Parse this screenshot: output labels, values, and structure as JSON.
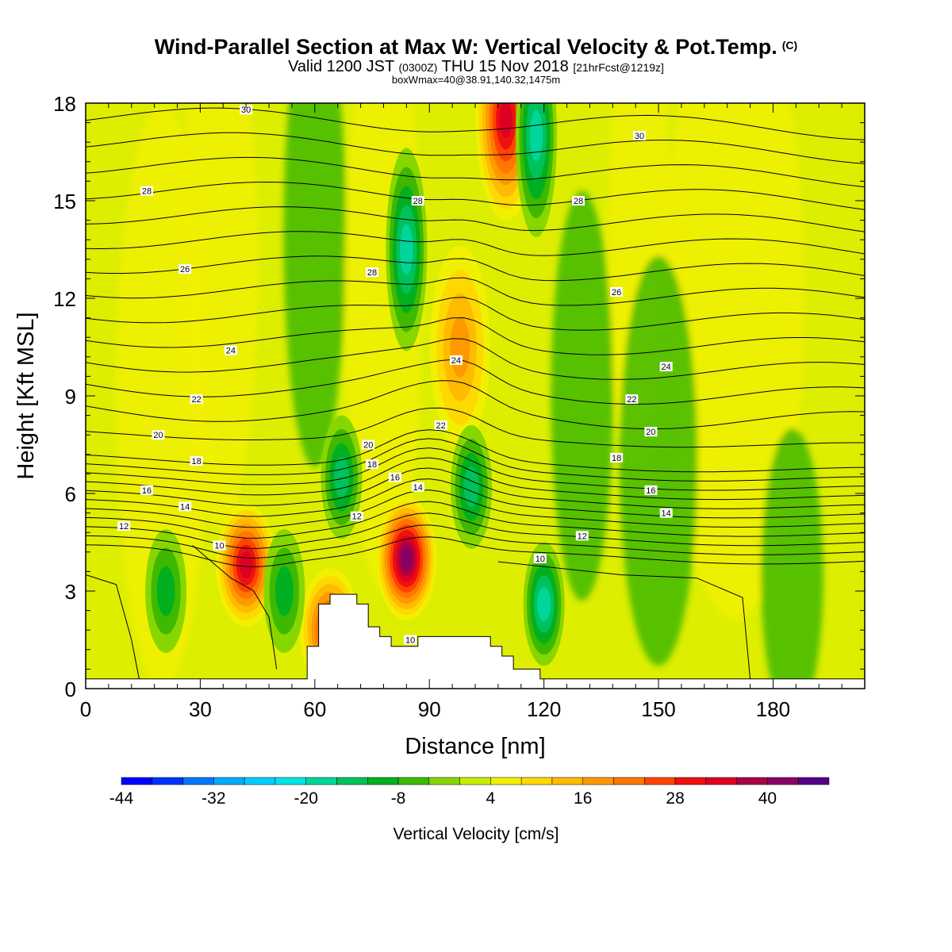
{
  "header": {
    "title": "Wind-Parallel Section at Max W: Vertical Velocity & Pot.Temp.",
    "title_mark": "(C)",
    "valid_prefix": "Valid 1200 JST",
    "valid_z": "(0300Z)",
    "valid_date": "THU 15 Nov 2018",
    "valid_fcst": "[21hrFcst@1219z]",
    "boxline": "boxWmax=40@38.91,140.32,1475m"
  },
  "chart_data": {
    "type": "heatmap",
    "title": "Wind-Parallel Section at Max W: Vertical Velocity & Pot.Temp.",
    "xlabel": "Distance [nm]",
    "ylabel": "Height [Kft MSL]",
    "xlim": [
      0,
      204
    ],
    "ylim": [
      0,
      18
    ],
    "x_ticks": [
      0,
      30,
      60,
      90,
      120,
      150,
      180
    ],
    "y_ticks": [
      0,
      3,
      6,
      9,
      12,
      15,
      18
    ],
    "fill_variable": "Vertical Velocity [cm/s]",
    "colorbar": {
      "title": "Vertical Velocity [cm/s]",
      "tick_labels": [
        "-44",
        "-32",
        "-20",
        "-8",
        "4",
        "16",
        "28",
        "40"
      ],
      "levels": [
        -44,
        -40,
        -36,
        -32,
        -28,
        -24,
        -20,
        -16,
        -12,
        -8,
        -4,
        0,
        4,
        8,
        12,
        16,
        20,
        24,
        28,
        32,
        36,
        40,
        44
      ],
      "colors": [
        "#0000ff",
        "#0033ff",
        "#0077ff",
        "#00aaff",
        "#00ccff",
        "#00e5e5",
        "#00d59a",
        "#00c15a",
        "#00b020",
        "#3fb800",
        "#88d600",
        "#c8ec00",
        "#f0f000",
        "#ffd800",
        "#ffbb00",
        "#ff9900",
        "#ff7700",
        "#ff4400",
        "#ee1111",
        "#dd0022",
        "#aa0044",
        "#880066",
        "#550088"
      ]
    },
    "max_w": 40,
    "w_features": [
      {
        "x": 84,
        "y": 4.0,
        "w": 40,
        "type": "updraft"
      },
      {
        "x": 42,
        "y": 3.8,
        "w": 30,
        "type": "updraft"
      },
      {
        "x": 64,
        "y": 1.8,
        "w": 28,
        "type": "updraft"
      },
      {
        "x": 110,
        "y": 17.5,
        "w": 30,
        "type": "updraft"
      },
      {
        "x": 98,
        "y": 10.5,
        "w": 14,
        "type": "updraft"
      },
      {
        "x": 120,
        "y": 2.6,
        "w": -18,
        "type": "downdraft"
      },
      {
        "x": 84,
        "y": 13.5,
        "w": -18,
        "type": "downdraft"
      },
      {
        "x": 67,
        "y": 6.5,
        "w": -16,
        "type": "downdraft"
      },
      {
        "x": 101,
        "y": 6.2,
        "w": -16,
        "type": "downdraft"
      },
      {
        "x": 118,
        "y": 17,
        "w": -18,
        "type": "downdraft"
      },
      {
        "x": 52,
        "y": 3.0,
        "w": -12,
        "type": "downdraft"
      },
      {
        "x": 21,
        "y": 3.0,
        "w": -10,
        "type": "downdraft"
      }
    ],
    "theta_contour_labels": [
      "10",
      "12",
      "14",
      "16",
      "18",
      "20",
      "22",
      "24",
      "26",
      "28",
      "30"
    ],
    "terrain_profile": {
      "x": [
        0,
        58,
        58,
        61,
        61,
        64,
        64,
        71,
        71,
        74,
        74,
        77,
        77,
        80,
        80,
        87,
        87,
        106,
        106,
        109,
        109,
        112,
        112,
        119,
        119,
        122,
        122,
        204
      ],
      "height_kft": [
        0.3,
        0.3,
        1.3,
        1.3,
        2.6,
        2.6,
        2.9,
        2.9,
        2.6,
        2.6,
        1.9,
        1.9,
        1.6,
        1.6,
        1.3,
        1.3,
        1.6,
        1.6,
        1.3,
        1.3,
        1.0,
        1.0,
        0.6,
        0.6,
        0.3,
        0.3,
        0.3,
        0.3
      ]
    }
  }
}
